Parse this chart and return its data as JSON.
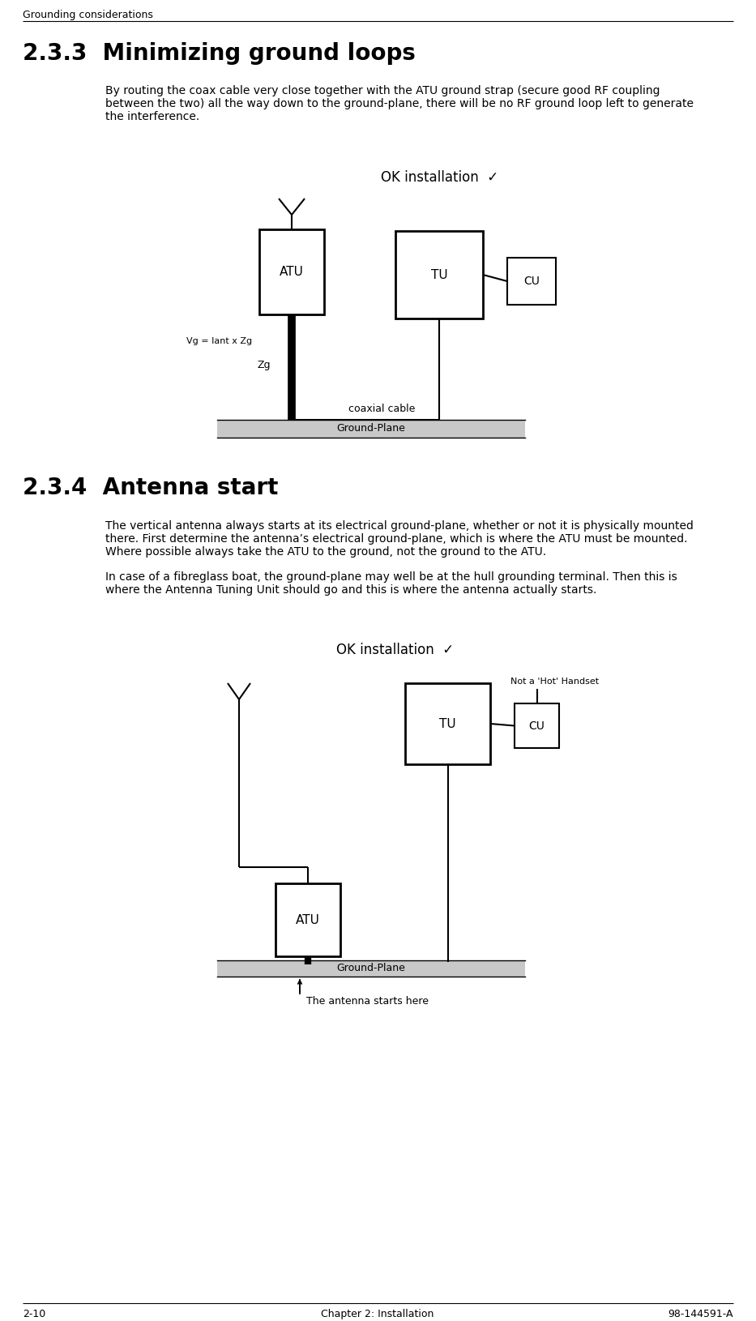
{
  "page_header": "Grounding considerations",
  "footer_left": "2-10",
  "footer_center": "Chapter 2: Installation",
  "footer_right": "98-144591-A",
  "section_233_num": "2.3.3",
  "section_233_title": "  Minimizing ground loops",
  "section_234_num": "2.3.4",
  "section_234_title": "  Antenna start",
  "section_233_text": "By routing the coax cable very close together with the ATU ground strap (secure good RF coupling\nbetween the two) all the way down to the ground-plane, there will be no RF ground loop left to generate\nthe interference.",
  "section_234_text_1": "The vertical antenna always starts at its electrical ground-plane, whether or not it is physically mounted\nthere. First determine the antenna’s electrical ground-plane, which is where the ATU must be mounted.\nWhere possible always take the ATU to the ground, not the ground to the ATU.",
  "section_234_text_2": "In case of a fibreglass boat, the ground-plane may well be at the hull grounding terminal. Then this is\nwhere the Antenna Tuning Unit should go and this is where the antenna actually starts.",
  "ok_label": "OK installation",
  "checkmark": "✓",
  "d1_ATU": "ATU",
  "d1_TU": "TU",
  "d1_CU": "CU",
  "d1_ground": "Ground-Plane",
  "d1_coax": "coaxial cable",
  "d1_Vg": "Vg = Iant x Zg",
  "d1_Zg": "Zg",
  "d2_ATU": "ATU",
  "d2_TU": "TU",
  "d2_CU": "CU",
  "d2_ground": "Ground-Plane",
  "d2_not_hot": "Not a 'Hot' Handset",
  "d2_starts": "The antenna starts here"
}
